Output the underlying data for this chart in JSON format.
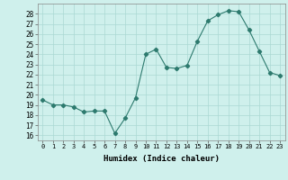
{
  "x": [
    0,
    1,
    2,
    3,
    4,
    5,
    6,
    7,
    8,
    9,
    10,
    11,
    12,
    13,
    14,
    15,
    16,
    17,
    18,
    19,
    20,
    21,
    22,
    23
  ],
  "y": [
    19.5,
    19.0,
    19.0,
    18.8,
    18.3,
    18.4,
    18.4,
    16.2,
    17.7,
    19.7,
    24.0,
    24.5,
    22.7,
    22.6,
    22.9,
    25.3,
    27.3,
    27.9,
    28.3,
    28.2,
    26.4,
    24.3,
    22.2,
    21.9
  ],
  "line_color": "#2d7a6e",
  "marker": "D",
  "marker_size": 2.2,
  "bg_color": "#cff0ec",
  "grid_color": "#aad8d3",
  "xlabel": "Humidex (Indice chaleur)",
  "ylabel_ticks": [
    16,
    17,
    18,
    19,
    20,
    21,
    22,
    23,
    24,
    25,
    26,
    27,
    28
  ],
  "ylim": [
    15.5,
    29.0
  ],
  "xlim": [
    -0.5,
    23.5
  ]
}
